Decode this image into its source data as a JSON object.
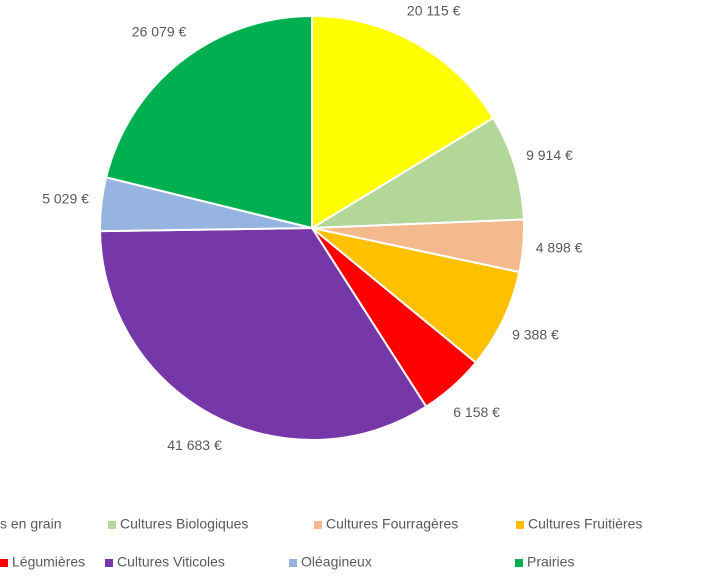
{
  "chart_data": {
    "type": "pie",
    "categories": [
      "s en grain",
      "Cultures Biologiques",
      "Cultures Fourragères",
      "Cultures Fruitières",
      "Légumières",
      "Cultures Viticoles",
      "Oléagineux",
      "Prairies"
    ],
    "values": [
      20115,
      9914,
      4898,
      9388,
      6158,
      41683,
      5029,
      26079
    ],
    "value_labels": [
      "20 115 €",
      "9 914 €",
      "4 898 €",
      "9 388 €",
      "6 158 €",
      "41 683 €",
      "5 029 €",
      "26 079 €"
    ],
    "colors": [
      "#ffff00",
      "#b3d699",
      "#f4b98c",
      "#ffc000",
      "#ff0000",
      "#7637a8",
      "#97b3e0",
      "#00b050"
    ],
    "legend": "bottom"
  }
}
